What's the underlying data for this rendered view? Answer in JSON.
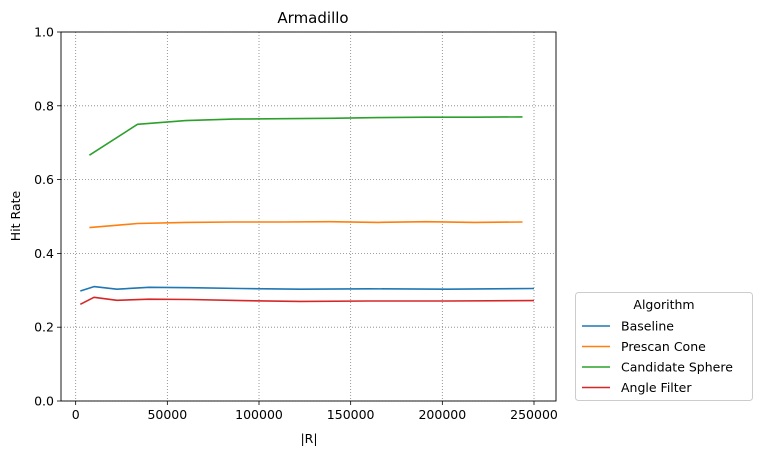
{
  "chart_data": {
    "type": "line",
    "title": "Armadillo",
    "xlabel": "|R|",
    "ylabel": "Hit Rate",
    "xlim": [
      -8000,
      262000
    ],
    "ylim": [
      0,
      1
    ],
    "xticks": [
      0,
      50000,
      100000,
      150000,
      200000,
      250000
    ],
    "xtick_labels": [
      "0",
      "50000",
      "100000",
      "150000",
      "200000",
      "250000"
    ],
    "yticks": [
      0.0,
      0.2,
      0.4,
      0.6,
      0.8,
      1.0
    ],
    "ytick_labels": [
      "0.0",
      "0.2",
      "0.4",
      "0.6",
      "0.8",
      "1.0"
    ],
    "grid": true,
    "legend": {
      "title": "Algorithm",
      "placement": "outside-right-bottom"
    },
    "series": [
      {
        "name": "Baseline",
        "color": "#1f77b4",
        "x": [
          2500,
          10000,
          22500,
          40000,
          62500,
          90000,
          122500,
          160000,
          202500,
          250000
        ],
        "y": [
          0.298,
          0.31,
          0.303,
          0.308,
          0.307,
          0.305,
          0.303,
          0.304,
          0.303,
          0.305
        ]
      },
      {
        "name": "Prescan Cone",
        "color": "#ff7f0e",
        "x": [
          7500,
          33750,
          60000,
          86250,
          112500,
          138750,
          165000,
          191250,
          217500,
          243750
        ],
        "y": [
          0.47,
          0.481,
          0.484,
          0.485,
          0.485,
          0.486,
          0.484,
          0.486,
          0.484,
          0.485
        ]
      },
      {
        "name": "Candidate Sphere",
        "color": "#2ca02c",
        "x": [
          7500,
          33750,
          60000,
          86250,
          112500,
          138750,
          165000,
          191250,
          217500,
          243750
        ],
        "y": [
          0.666,
          0.75,
          0.76,
          0.764,
          0.765,
          0.766,
          0.768,
          0.769,
          0.769,
          0.77
        ]
      },
      {
        "name": "Angle Filter",
        "color": "#d62728",
        "x": [
          2500,
          10000,
          22500,
          40000,
          62500,
          90000,
          122500,
          160000,
          202500,
          250000
        ],
        "y": [
          0.262,
          0.281,
          0.273,
          0.276,
          0.275,
          0.272,
          0.27,
          0.271,
          0.271,
          0.272
        ]
      }
    ]
  }
}
